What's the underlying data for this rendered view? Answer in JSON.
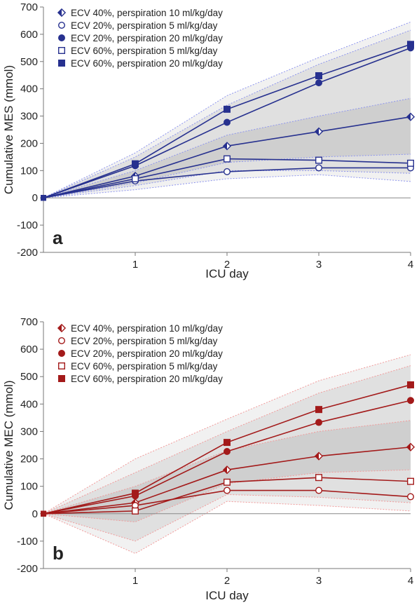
{
  "chart_data": [
    {
      "type": "line",
      "panel_label": "a",
      "ylabel": "Cumulative MES (mmol)",
      "xlabel": "ICU day",
      "x_ticks": [
        "1",
        "2",
        "3",
        "4"
      ],
      "y_ticks": [
        "-200",
        "-100",
        "0",
        "100",
        "200",
        "300",
        "400",
        "500",
        "600",
        "700"
      ],
      "xlim": [
        0,
        4
      ],
      "ylim": [
        -200,
        700
      ],
      "grid": false,
      "legend_position": "top-left",
      "color": "#27318f",
      "band_color": "#8e95ee",
      "x": [
        0,
        1,
        2,
        3,
        4
      ],
      "series": [
        {
          "name": "ECV 40%, perspiration 10 ml/kg/day",
          "marker": "diamond-open",
          "values": [
            0,
            80,
            190,
            243,
            297
          ]
        },
        {
          "name": "ECV 20%, perspiration 5 ml/kg/day",
          "marker": "circle-open",
          "values": [
            0,
            62,
            96,
            110,
            110
          ]
        },
        {
          "name": "ECV 20%, perspiration 20 ml/kg/day",
          "marker": "circle-filled",
          "values": [
            0,
            118,
            277,
            422,
            550
          ]
        },
        {
          "name": "ECV 60%, perspiration 5 ml/kg/day",
          "marker": "square-open",
          "values": [
            0,
            70,
            143,
            138,
            127
          ]
        },
        {
          "name": "ECV 60%, perspiration 20 ml/kg/day",
          "marker": "square-filled",
          "values": [
            0,
            125,
            325,
            448,
            563
          ]
        }
      ],
      "bands": [
        {
          "lower": [
            0,
            30,
            70,
            85,
            60
          ],
          "upper": [
            0,
            165,
            375,
            515,
            645
          ]
        },
        {
          "lower": [
            0,
            45,
            100,
            100,
            90
          ],
          "upper": [
            0,
            150,
            340,
            490,
            615
          ]
        },
        {
          "lower": [
            0,
            55,
            130,
            150,
            160
          ],
          "upper": [
            0,
            100,
            230,
            300,
            365
          ]
        }
      ]
    },
    {
      "type": "line",
      "panel_label": "b",
      "ylabel": "Cumulative MEC (mmol)",
      "xlabel": "ICU day",
      "x_ticks": [
        "1",
        "2",
        "3",
        "4"
      ],
      "y_ticks": [
        "-200",
        "-100",
        "0",
        "100",
        "200",
        "300",
        "400",
        "500",
        "600",
        "700"
      ],
      "xlim": [
        0,
        4
      ],
      "ylim": [
        -200,
        700
      ],
      "grid": false,
      "legend_position": "top-left",
      "color": "#a31a1a",
      "band_color": "#f19a9a",
      "x": [
        0,
        1,
        2,
        3,
        4
      ],
      "series": [
        {
          "name": "ECV 40%, perspiration 10 ml/kg/day",
          "marker": "diamond-open",
          "values": [
            0,
            40,
            160,
            210,
            243
          ]
        },
        {
          "name": "ECV 20%, perspiration 5 ml/kg/day",
          "marker": "circle-open",
          "values": [
            0,
            30,
            85,
            85,
            62
          ]
        },
        {
          "name": "ECV 20%, perspiration 20 ml/kg/day",
          "marker": "circle-filled",
          "values": [
            0,
            65,
            227,
            333,
            413
          ]
        },
        {
          "name": "ECV 60%, perspiration 5 ml/kg/day",
          "marker": "square-open",
          "values": [
            0,
            10,
            115,
            132,
            118
          ]
        },
        {
          "name": "ECV 60%, perspiration 20 ml/kg/day",
          "marker": "square-filled",
          "values": [
            0,
            75,
            260,
            380,
            470
          ]
        }
      ],
      "bands": [
        {
          "lower": [
            0,
            -145,
            45,
            30,
            10
          ],
          "upper": [
            0,
            200,
            345,
            485,
            580
          ]
        },
        {
          "lower": [
            0,
            -100,
            70,
            60,
            40
          ],
          "upper": [
            0,
            150,
            300,
            440,
            540
          ]
        },
        {
          "lower": [
            0,
            -30,
            110,
            150,
            160
          ],
          "upper": [
            0,
            100,
            230,
            300,
            340
          ]
        }
      ]
    }
  ]
}
